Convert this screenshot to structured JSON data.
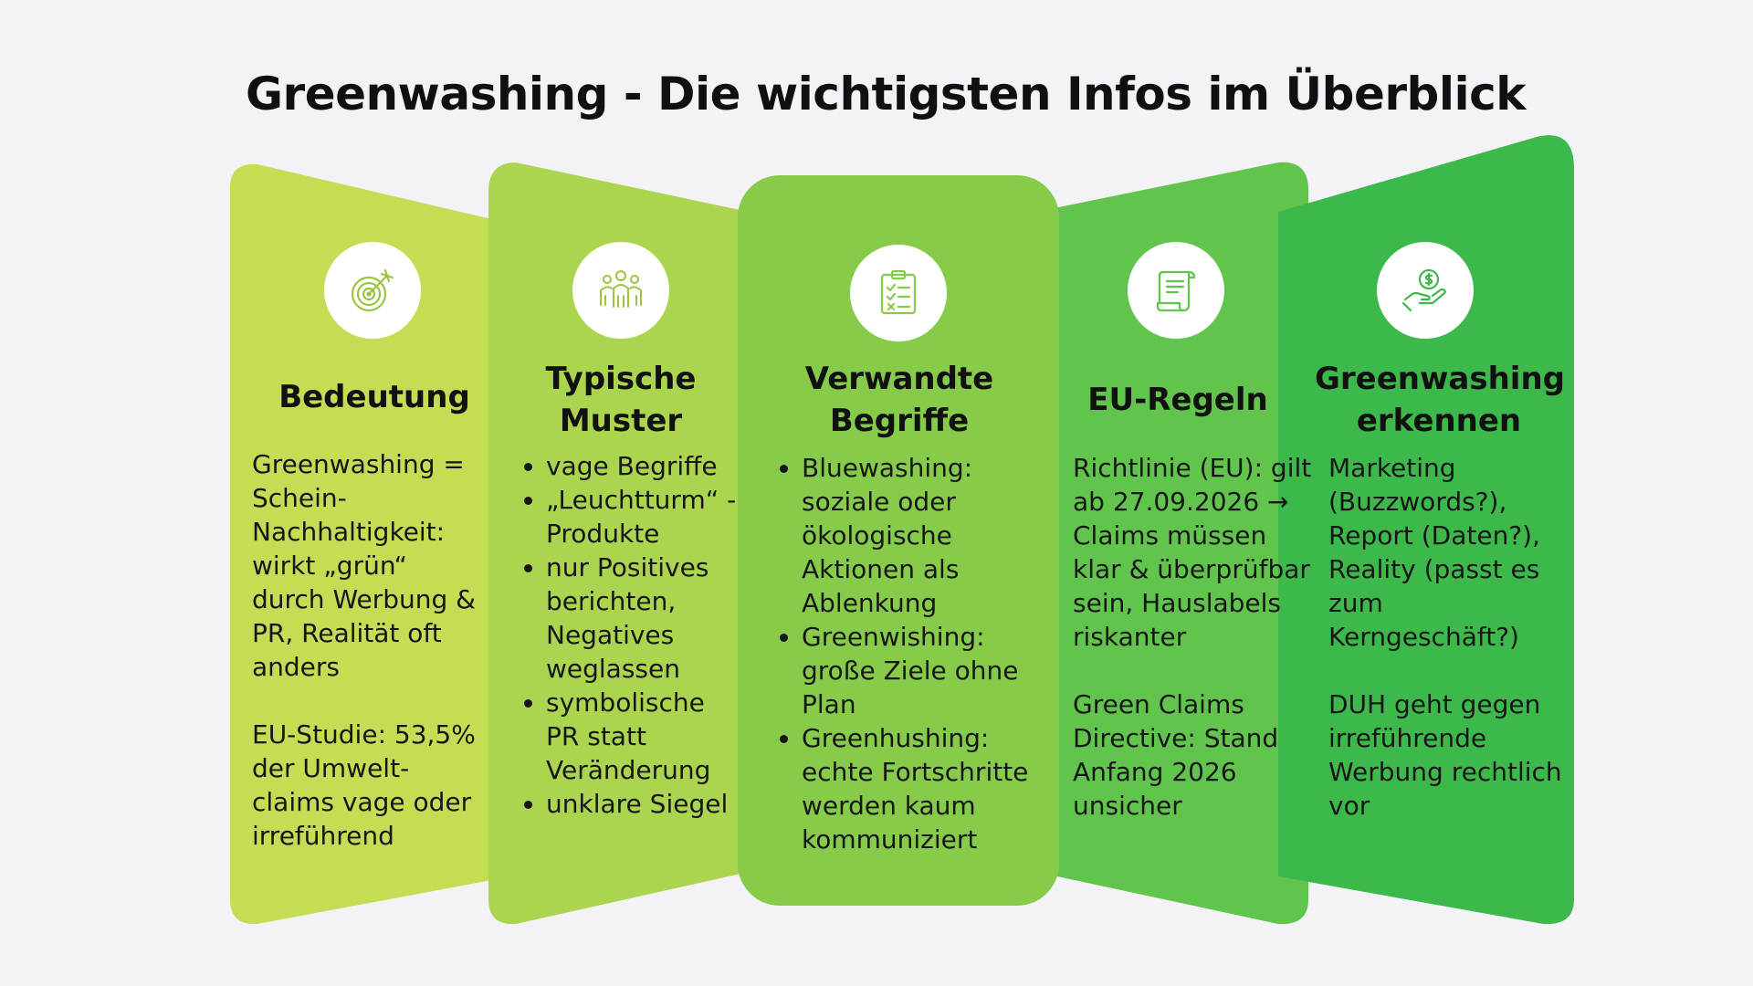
{
  "title": "Greenwashing - Die wichtigsten Infos im Überblick",
  "colors": {
    "background": "#f3f3f7",
    "panel1": "#c3de55",
    "panel2": "#acd54f",
    "panel3": "#86cc4a",
    "panel4": "#61c44c",
    "panel5": "#3db94b"
  },
  "columns": [
    {
      "icon": "target-icon",
      "heading": "Bedeutung",
      "paragraphs": [
        "Greenwashing = Schein-Nachhaltigkeit: wirkt „grün“ durch Werbung & PR, Realität oft anders",
        "EU-Studie: 53,5% der Umwelt-claims vage oder irreführend"
      ]
    },
    {
      "icon": "team-icon",
      "heading": "Typische Muster",
      "bullets": [
        "vage Begriffe",
        "„Leuchtturm“ -Produkte",
        "nur Positives berichten, Negatives weglassen",
        "symbolische PR statt Veränderung",
        "unklare Siegel"
      ]
    },
    {
      "icon": "checklist-icon",
      "heading": "Verwandte Begriffe",
      "bullets": [
        "Bluewashing: soziale oder ökologische Aktionen als Ablenkung",
        "Greenwishing: große Ziele ohne Plan",
        "Greenhushing: echte Fortschritte werden kaum kommuniziert"
      ]
    },
    {
      "icon": "document-scroll-icon",
      "heading": "EU-Regeln",
      "paragraphs": [
        "Richtlinie (EU): gilt ab 27.09.2026 → Claims müssen klar & überprüfbar sein, Hauslabels riskanter",
        "Green Claims Directive: Stand Anfang 2026 unsicher"
      ]
    },
    {
      "icon": "money-hand-icon",
      "heading": "Greenwashing erkennen",
      "paragraphs": [
        "Marketing (Buzzwords?), Report (Daten?), Reality (passt es zum Kerngeschäft?)",
        "DUH geht gegen irreführende Werbung rechtlich vor"
      ]
    }
  ]
}
